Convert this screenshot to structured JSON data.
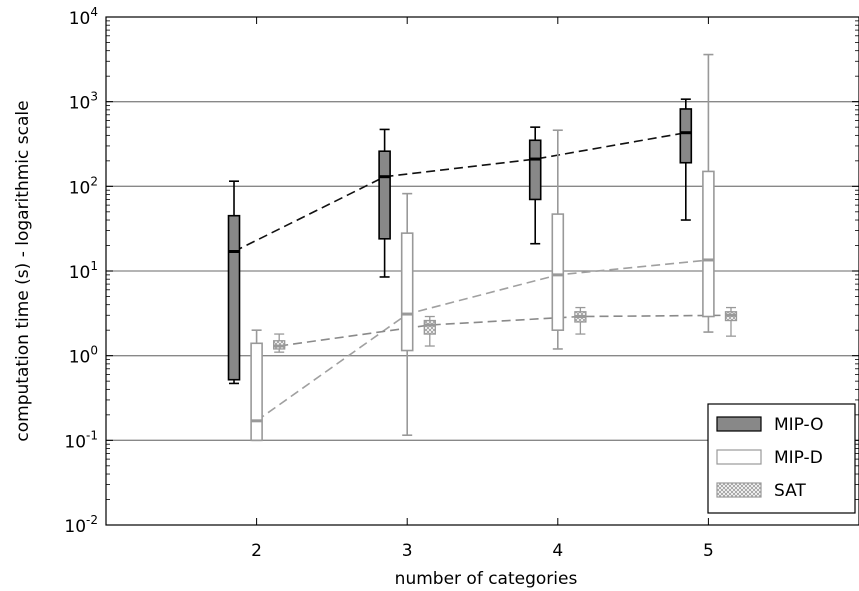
{
  "chart_data": {
    "type": "box",
    "title": "",
    "xlabel": "number of categories",
    "ylabel": "computation time (s) - logarithmic scale",
    "yscale": "log",
    "ylim": [
      0.01,
      10000
    ],
    "xlim": [
      1,
      6
    ],
    "x_ticks": [
      2,
      3,
      4,
      5
    ],
    "y_ticks": [
      {
        "value": 0.01,
        "base": "10",
        "exp": "-2"
      },
      {
        "value": 0.1,
        "base": "10",
        "exp": "-1"
      },
      {
        "value": 1,
        "base": "10",
        "exp": "0"
      },
      {
        "value": 10,
        "base": "10",
        "exp": "1"
      },
      {
        "value": 100,
        "base": "10",
        "exp": "2"
      },
      {
        "value": 1000,
        "base": "10",
        "exp": "3"
      },
      {
        "value": 10000,
        "base": "10",
        "exp": "4"
      }
    ],
    "grid": "horizontal",
    "legend_position": "bottom-right",
    "series": [
      {
        "name": "MIP-O",
        "offset": -0.15,
        "fill": "#888888",
        "stroke": "#000000",
        "median_color": "#000000",
        "line_color": "#111111",
        "hatch": false,
        "boxes": [
          {
            "x": 2,
            "whislo": 0.47,
            "q1": 0.52,
            "med": 17,
            "q3": 45,
            "whishi": 115
          },
          {
            "x": 3,
            "whislo": 8.5,
            "q1": 24,
            "med": 130,
            "q3": 260,
            "whishi": 470
          },
          {
            "x": 4,
            "whislo": 21,
            "q1": 70,
            "med": 210,
            "q3": 350,
            "whishi": 500
          },
          {
            "x": 5,
            "whislo": 40,
            "q1": 190,
            "med": 430,
            "q3": 820,
            "whishi": 1070
          }
        ]
      },
      {
        "name": "MIP-D",
        "offset": 0.0,
        "fill": "#ffffff",
        "stroke": "#999999",
        "median_color": "#999999",
        "line_color": "#a0a0a0",
        "hatch": false,
        "boxes": [
          {
            "x": 2,
            "whislo": 0.1,
            "q1": 0.1,
            "med": 0.17,
            "q3": 1.4,
            "whishi": 2.0
          },
          {
            "x": 3,
            "whislo": 0.115,
            "q1": 1.15,
            "med": 3.1,
            "q3": 28,
            "whishi": 82
          },
          {
            "x": 4,
            "whislo": 1.2,
            "q1": 2.0,
            "med": 9.0,
            "q3": 47,
            "whishi": 460
          },
          {
            "x": 5,
            "whislo": 1.9,
            "q1": 2.9,
            "med": 13.5,
            "q3": 150,
            "whishi": 3600
          }
        ]
      },
      {
        "name": "SAT",
        "offset": 0.15,
        "fill": "#ffffff",
        "stroke": "#999999",
        "median_color": "#999999",
        "line_color": "#8a8a8a",
        "hatch": true,
        "boxes": [
          {
            "x": 2,
            "whislo": 1.1,
            "q1": 1.2,
            "med": 1.3,
            "q3": 1.5,
            "whishi": 1.8
          },
          {
            "x": 3,
            "whislo": 1.3,
            "q1": 1.8,
            "med": 2.3,
            "q3": 2.6,
            "whishi": 2.9
          },
          {
            "x": 4,
            "whislo": 1.8,
            "q1": 2.5,
            "med": 2.9,
            "q3": 3.3,
            "whishi": 3.7
          },
          {
            "x": 5,
            "whislo": 1.7,
            "q1": 2.6,
            "med": 3.0,
            "q3": 3.3,
            "whishi": 3.7
          }
        ]
      }
    ]
  }
}
